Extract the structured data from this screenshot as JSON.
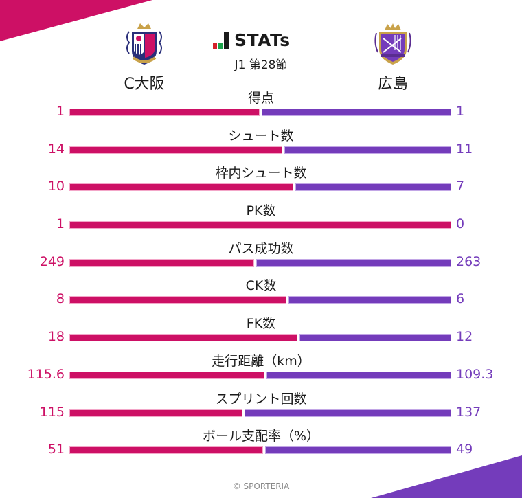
{
  "colors": {
    "home": "#cd1065",
    "away": "#743cbb"
  },
  "brand": {
    "logo_icon": "stats-bars-icon",
    "title": "STATs"
  },
  "match": {
    "round": "J1 第28節"
  },
  "teams": {
    "home": {
      "name": "C大阪",
      "crest": "cerezo-osaka-crest-icon"
    },
    "away": {
      "name": "広島",
      "crest": "sanfrecce-hiroshima-crest-icon"
    }
  },
  "footer": {
    "copyright": "© SPORTERIA"
  },
  "stats": [
    {
      "label": "得点",
      "home": "1",
      "away": "1"
    },
    {
      "label": "シュート数",
      "home": "14",
      "away": "11"
    },
    {
      "label": "枠内シュート数",
      "home": "10",
      "away": "7"
    },
    {
      "label": "PK数",
      "home": "1",
      "away": "0"
    },
    {
      "label": "パス成功数",
      "home": "249",
      "away": "263"
    },
    {
      "label": "CK数",
      "home": "8",
      "away": "6"
    },
    {
      "label": "FK数",
      "home": "18",
      "away": "12"
    },
    {
      "label": "走行距離（km）",
      "home": "115.6",
      "away": "109.3"
    },
    {
      "label": "スプリント回数",
      "home": "115",
      "away": "137"
    },
    {
      "label": "ボール支配率（%）",
      "home": "51",
      "away": "49"
    }
  ],
  "chart_data": {
    "type": "bar",
    "orientation": "horizontal-diverging-stacked",
    "title": "STATs",
    "subtitle": "J1 第28節",
    "categories": [
      "得点",
      "シュート数",
      "枠内シュート数",
      "PK数",
      "パス成功数",
      "CK数",
      "FK数",
      "走行距離（km）",
      "スプリント回数",
      "ボール支配率（%）"
    ],
    "series": [
      {
        "name": "C大阪",
        "color": "#cd1065",
        "values": [
          1,
          14,
          10,
          1,
          249,
          8,
          18,
          115.6,
          115,
          51
        ]
      },
      {
        "name": "広島",
        "color": "#743cbb",
        "values": [
          1,
          11,
          7,
          0,
          263,
          6,
          12,
          109.3,
          137,
          49
        ]
      }
    ],
    "xlabel": "",
    "ylabel": "",
    "grid": false,
    "legend": "team names above bars (left: C大阪, right: 広島)"
  }
}
